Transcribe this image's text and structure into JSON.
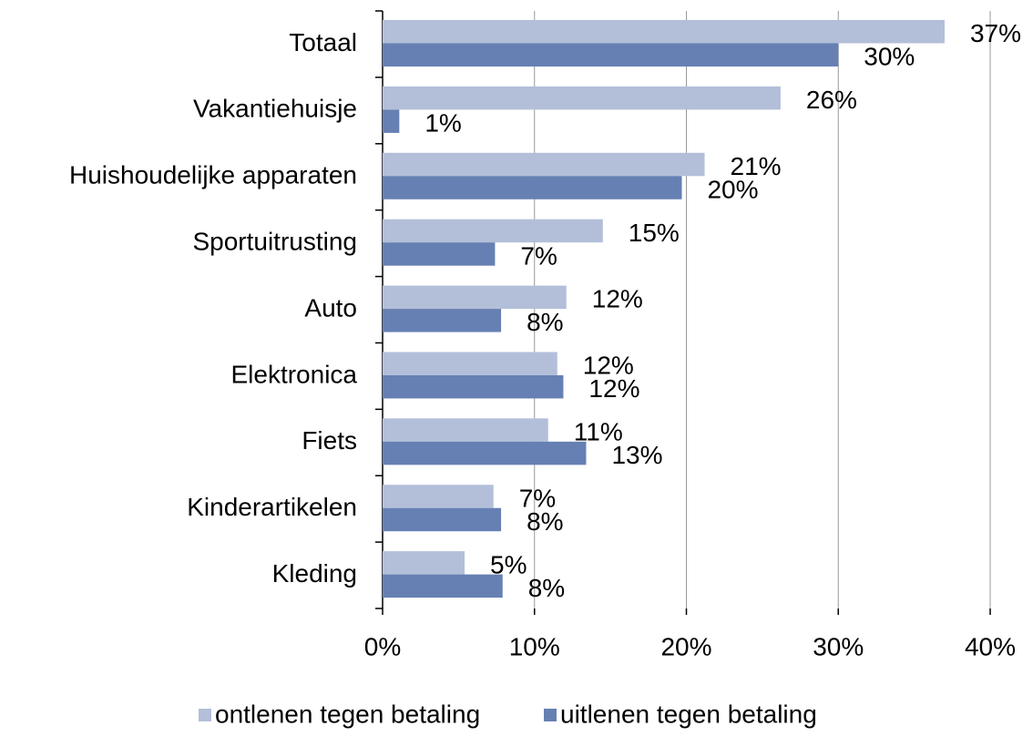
{
  "chart_data": {
    "type": "hbar",
    "categories": [
      "Totaal",
      "Vakantiehuisje",
      "Huishoudelijke apparaten",
      "Sportuitrusting",
      "Auto",
      "Elektronica",
      "Fiets",
      "Kinderartikelen",
      "Kleding"
    ],
    "series": [
      {
        "name": "ontlenen tegen betaling",
        "color": "#b3bfd9",
        "values": [
          37.0,
          26.2,
          21.2,
          14.5,
          12.1,
          11.5,
          10.9,
          7.3,
          5.4
        ],
        "value_labels": [
          "37%",
          "26%",
          "21%",
          "15%",
          "12%",
          "12%",
          "11%",
          "7%",
          "5%"
        ]
      },
      {
        "name": "uitlenen tegen betaling",
        "color": "#6680b3",
        "values": [
          30.0,
          1.1,
          19.7,
          7.4,
          7.8,
          11.9,
          13.4,
          7.8,
          7.9
        ],
        "value_labels": [
          "30%",
          "1%",
          "20%",
          "7%",
          "8%",
          "12%",
          "13%",
          "8%",
          "8%"
        ]
      }
    ],
    "xlim": [
      0,
      40
    ],
    "xticks": [
      {
        "value": 0,
        "label": "0%"
      },
      {
        "value": 10,
        "label": "10%"
      },
      {
        "value": 20,
        "label": "20%"
      },
      {
        "value": 30,
        "label": "30%"
      },
      {
        "value": 40,
        "label": "40%"
      }
    ],
    "grid": true,
    "legend": "bottom"
  }
}
